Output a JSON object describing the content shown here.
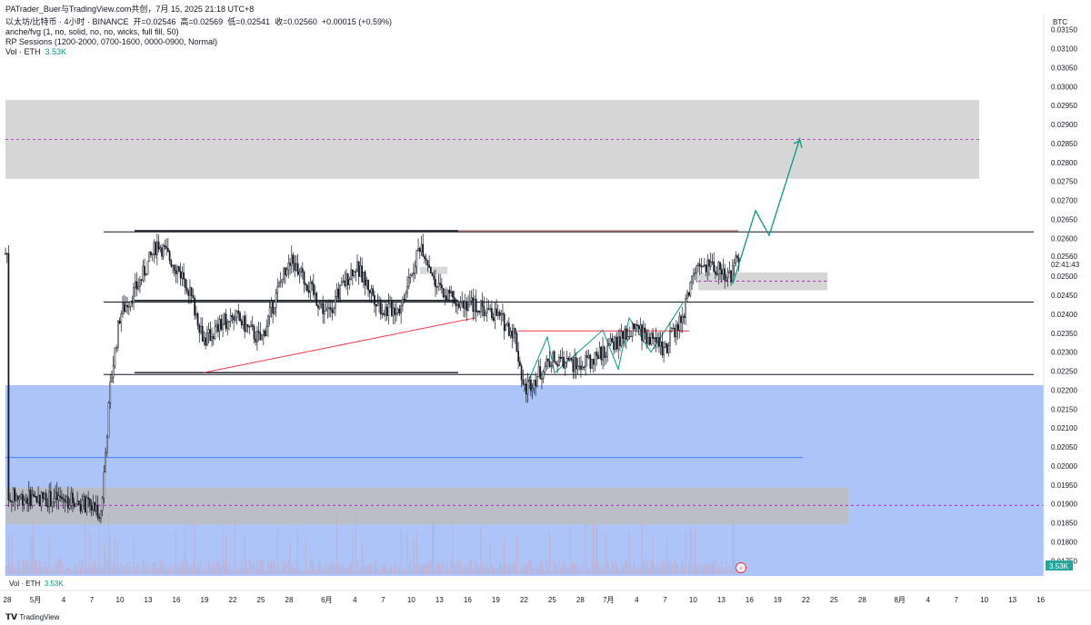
{
  "header": {
    "attribution": "PATrader_Buer与TradingView.com共创，7月 15, 2025 21:18 UTC+8",
    "symbol_line_prefix": "以太坊/比特币 · 4小时 · BINANCE",
    "ohlc": {
      "open_label": "开",
      "open": "0.02546",
      "high_label": "高",
      "high": "0.02569",
      "low_label": "低",
      "low": "0.02541",
      "close_label": "收",
      "close": "0.02560",
      "change": "+0.00015 (+0.59%)"
    },
    "indicator_1": "anche/fvg (1, no, solid, no, no, wicks, full fill, 50)",
    "indicator_2": "RP Sessions (1200-2000, 0700-1600, 0000-0900, Normal)",
    "vol_label": "Vol · ETH",
    "vol_value": "3.53K"
  },
  "price_axis": {
    "currency": "BTC",
    "last_price": "0.02560",
    "countdown": "02:41:43",
    "vol_badge": "3.53K"
  },
  "bottom_vol": {
    "label": "Vol · ETH",
    "value": "3.53K"
  },
  "footer": {
    "brand": "TradingView"
  },
  "colors": {
    "up": "#131722",
    "zone_gray": "#cfcfcf",
    "zone_blue": "#a9c1f9",
    "teal": "#089981",
    "red": "#f23645",
    "purple": "#9c27b0",
    "blue_line": "#2962ff"
  },
  "chart_data": {
    "type": "candlestick",
    "title": "",
    "xlabel": "",
    "ylabel": "",
    "ylim": [
      0.0171,
      0.0319
    ],
    "y_ticks": [
      "0.03150",
      "0.03100",
      "0.03050",
      "0.03000",
      "0.02950",
      "0.02900",
      "0.02850",
      "0.02800",
      "0.02750",
      "0.02700",
      "0.02650",
      "0.02600",
      "0.02500",
      "0.02450",
      "0.02400",
      "0.02350",
      "0.02300",
      "0.02250",
      "0.02200",
      "0.02150",
      "0.02100",
      "0.02050",
      "0.02000",
      "0.01950",
      "0.01900",
      "0.01850",
      "0.01800",
      "0.01750"
    ],
    "x_ticks": [
      "28",
      "5月",
      "4",
      "7",
      "10",
      "13",
      "16",
      "19",
      "22",
      "25",
      "28",
      "6月",
      "4",
      "7",
      "10",
      "13",
      "16",
      "19",
      "22",
      "25",
      "28",
      "7月",
      "4",
      "7",
      "10",
      "13",
      "16",
      "19",
      "22",
      "25",
      "28",
      "8月",
      "4",
      "7",
      "10",
      "13",
      "16"
    ],
    "price_path": [
      {
        "date": "04-28",
        "price": 0.0192
      },
      {
        "date": "05-05",
        "price": 0.0191
      },
      {
        "date": "05-08",
        "price": 0.0188
      },
      {
        "date": "05-09",
        "price": 0.0222
      },
      {
        "date": "05-10",
        "price": 0.024
      },
      {
        "date": "05-12",
        "price": 0.0248
      },
      {
        "date": "05-14",
        "price": 0.0259
      },
      {
        "date": "05-17",
        "price": 0.0249
      },
      {
        "date": "05-19",
        "price": 0.0233
      },
      {
        "date": "05-22",
        "price": 0.024
      },
      {
        "date": "05-25",
        "price": 0.0233
      },
      {
        "date": "05-28",
        "price": 0.0255
      },
      {
        "date": "06-01",
        "price": 0.024
      },
      {
        "date": "06-04",
        "price": 0.0253
      },
      {
        "date": "06-07",
        "price": 0.0241
      },
      {
        "date": "06-09",
        "price": 0.0242
      },
      {
        "date": "06-11",
        "price": 0.0259
      },
      {
        "date": "06-13",
        "price": 0.0246
      },
      {
        "date": "06-16",
        "price": 0.0243
      },
      {
        "date": "06-19",
        "price": 0.024
      },
      {
        "date": "06-21",
        "price": 0.0235
      },
      {
        "date": "06-22",
        "price": 0.022
      },
      {
        "date": "06-25",
        "price": 0.0228
      },
      {
        "date": "06-28",
        "price": 0.0226
      },
      {
        "date": "07-01",
        "price": 0.0231
      },
      {
        "date": "07-04",
        "price": 0.0236
      },
      {
        "date": "07-07",
        "price": 0.0231
      },
      {
        "date": "07-09",
        "price": 0.024
      },
      {
        "date": "07-10",
        "price": 0.0251
      },
      {
        "date": "07-12",
        "price": 0.0253
      },
      {
        "date": "07-14",
        "price": 0.025
      },
      {
        "date": "07-15",
        "price": 0.0256
      }
    ],
    "zones": [
      {
        "name": "upper-supply-zone",
        "from": 0.02757,
        "to": 0.02965,
        "mid": 0.02861,
        "color": "#cfcfcf"
      },
      {
        "name": "demand-zone-blue",
        "from": 0.0171,
        "to": 0.02213,
        "color": "#a9c1f9"
      },
      {
        "name": "lower-gray-zone",
        "from": 0.01846,
        "to": 0.01943,
        "mid": 0.01896,
        "color": "#bdbdbd"
      },
      {
        "name": "fvg-zone",
        "from": 0.02463,
        "to": 0.0251,
        "mid": 0.02487,
        "color": "#cfcfcf"
      }
    ],
    "levels": [
      0.02617,
      0.02432,
      0.02241,
      0.02022
    ],
    "projection_path": [
      {
        "date": "07-15",
        "price": 0.02563
      },
      {
        "date": "07-18",
        "price": 0.02673
      },
      {
        "date": "07-19",
        "price": 0.02608
      },
      {
        "date": "07-21",
        "price": 0.02865
      }
    ]
  }
}
